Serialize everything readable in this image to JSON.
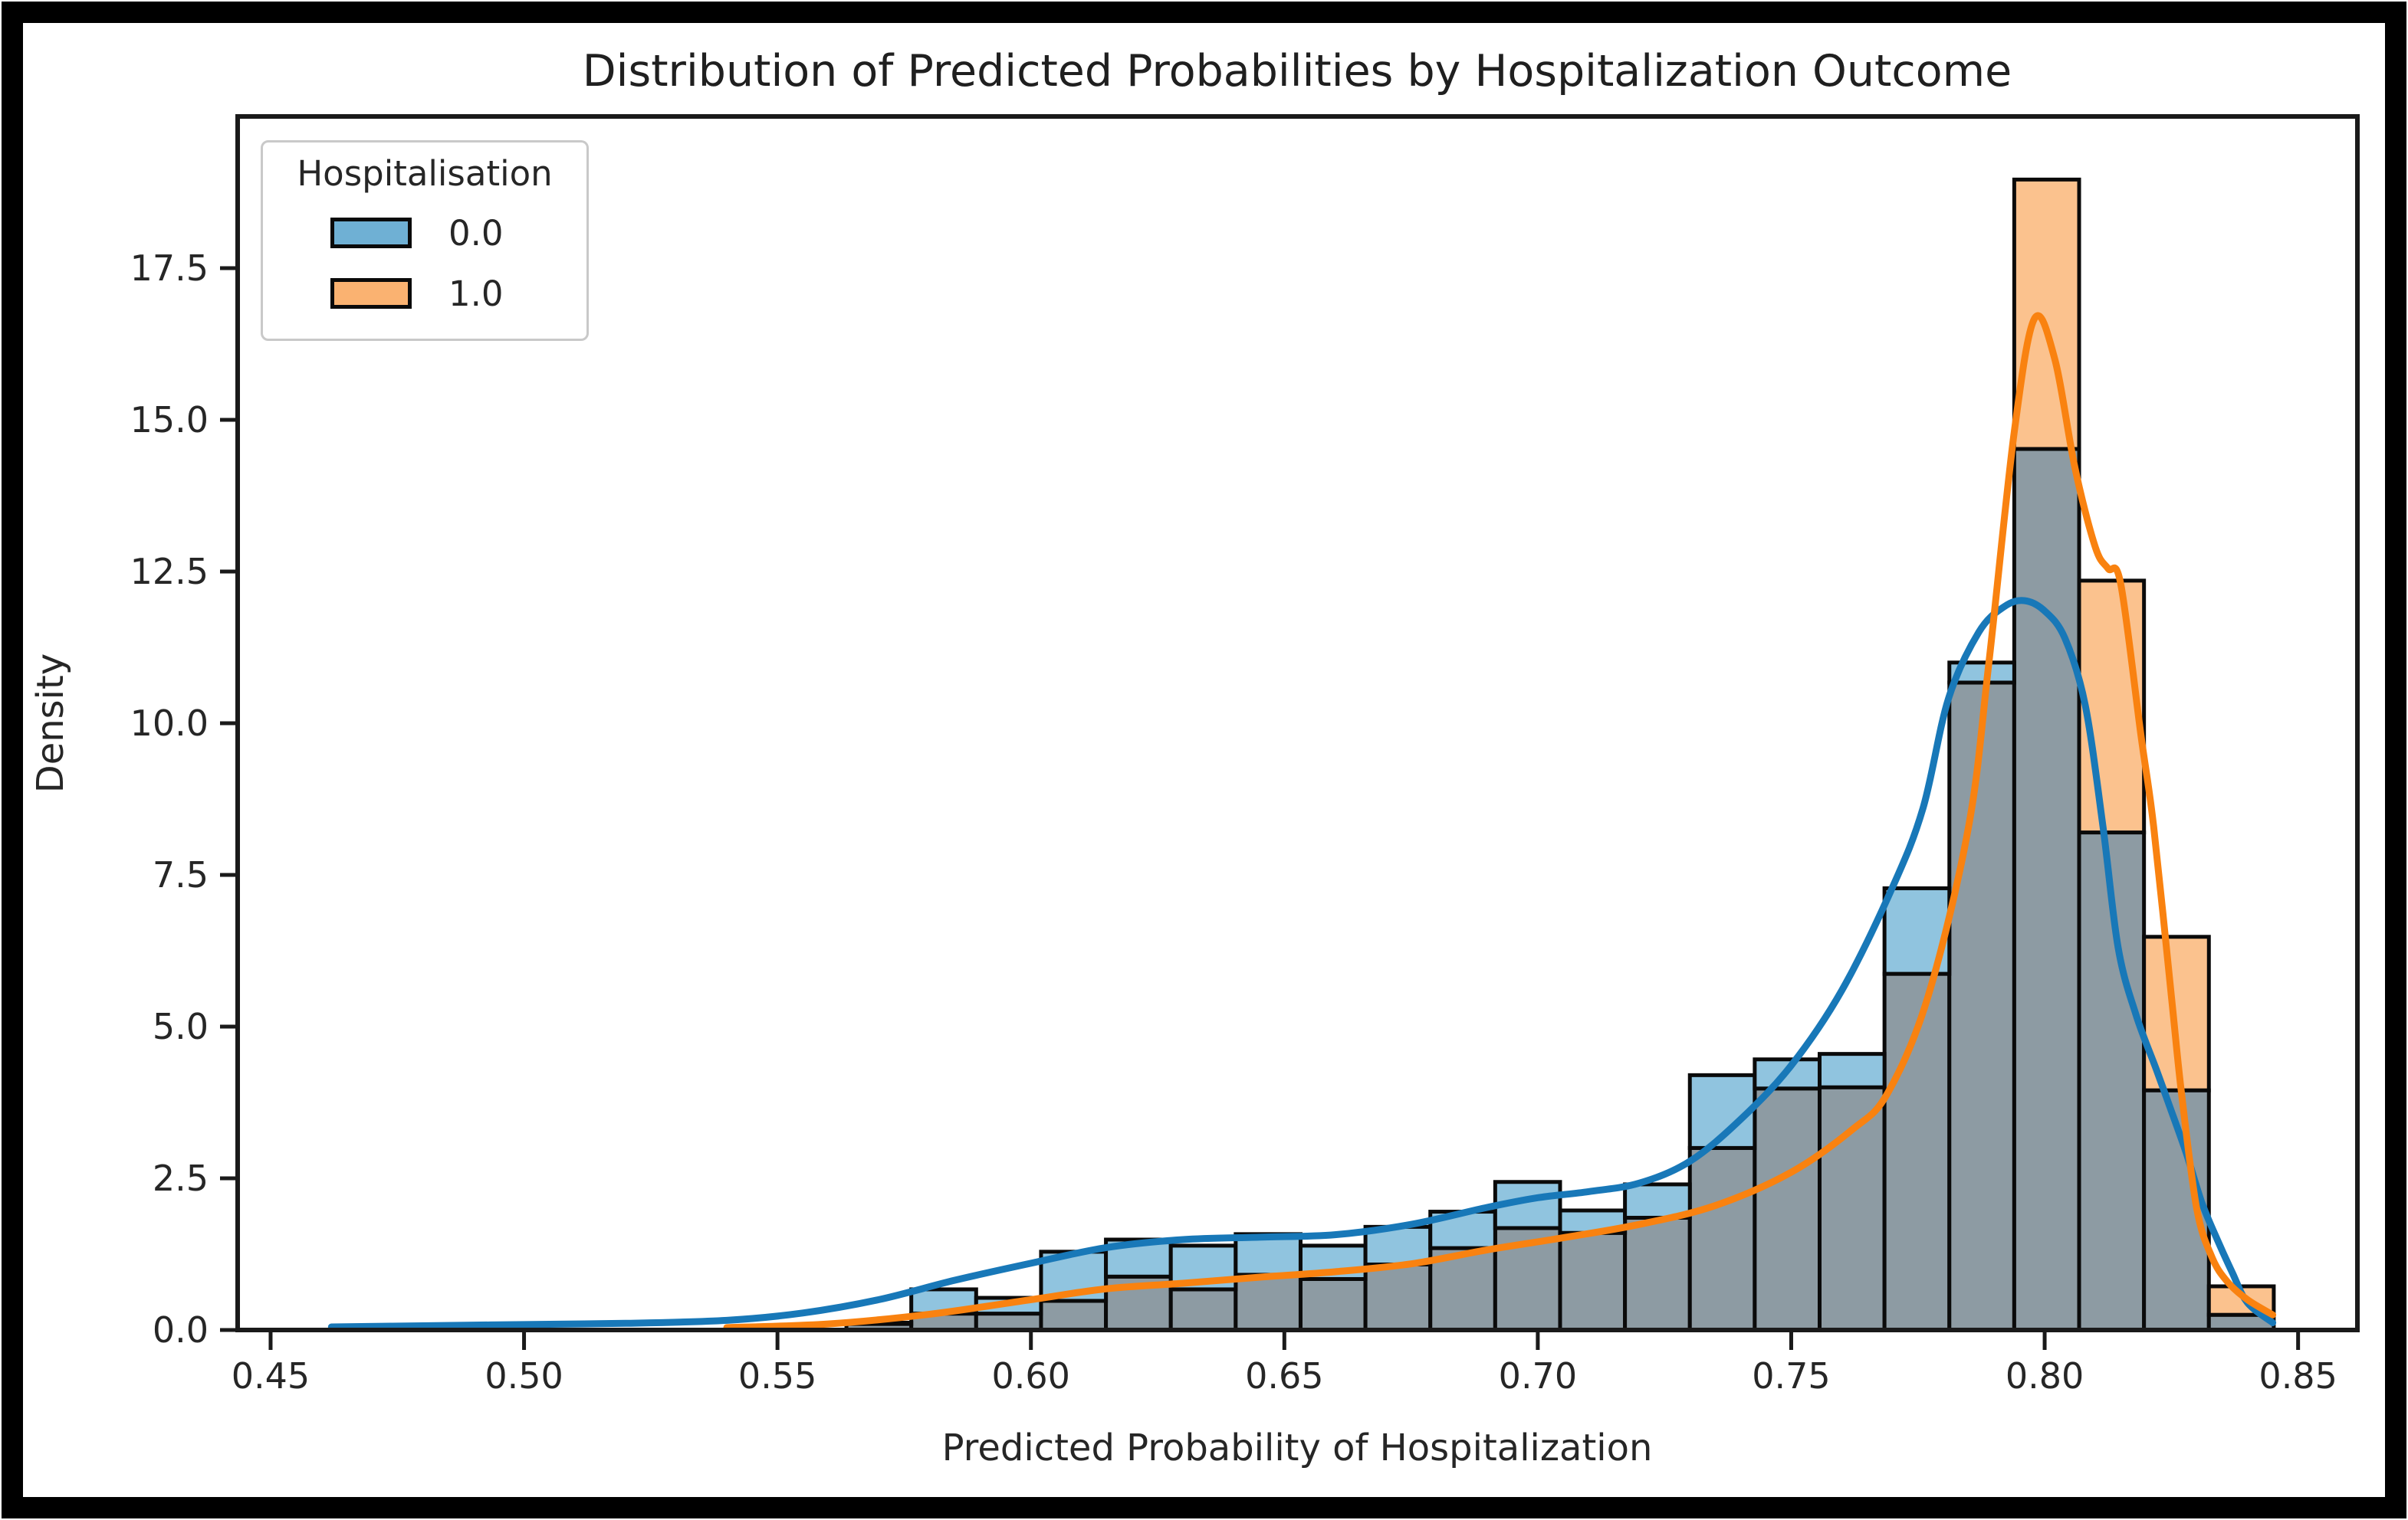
{
  "chart_data": {
    "type": "bar",
    "subtype": "histogram_with_kde_overlay",
    "title": "Distribution of Predicted Probabilities by Hospitalization Outcome",
    "xlabel": "Predicted Probability of Hospitalization",
    "ylabel": "Density",
    "grid": "off",
    "xlim": [
      0.4435,
      0.8617
    ],
    "ylim": [
      0,
      20
    ],
    "x_tick_labels": [
      "0.45",
      "0.50",
      "0.55",
      "0.60",
      "0.65",
      "0.70",
      "0.75",
      "0.80",
      "0.85"
    ],
    "x_tick_values": [
      0.45,
      0.5,
      0.55,
      0.6,
      0.65,
      0.7,
      0.75,
      0.8,
      0.85
    ],
    "y_tick_labels": [
      "0.0",
      "2.5",
      "5.0",
      "7.5",
      "10.0",
      "12.5",
      "15.0",
      "17.5"
    ],
    "y_tick_values": [
      0.0,
      2.5,
      5.0,
      7.5,
      10.0,
      12.5,
      15.0,
      17.5
    ],
    "legend": {
      "title": "Hospitalisation",
      "position": "upper left",
      "entries": [
        {
          "label": "0.0",
          "color": "#6FB0D4"
        },
        {
          "label": "1.0",
          "color": "#FAB271"
        }
      ]
    },
    "bin_edges": [
      0.5636,
      0.5764,
      0.5892,
      0.602,
      0.6148,
      0.6276,
      0.6404,
      0.6532,
      0.666,
      0.6788,
      0.6916,
      0.7044,
      0.7172,
      0.73,
      0.7428,
      0.7556,
      0.7684,
      0.7812,
      0.794,
      0.8068,
      0.8196,
      0.8324,
      0.8452
    ],
    "series": [
      {
        "name": "0.0",
        "values": [
          0.12,
          0.67,
          0.53,
          1.29,
          1.49,
          1.39,
          1.58,
          1.39,
          1.7,
          1.95,
          2.44,
          1.97,
          2.4,
          4.2,
          4.46,
          4.55,
          7.28,
          11.0,
          14.52,
          8.2,
          3.95,
          0.25
        ]
      },
      {
        "name": "1.0",
        "values": [
          0.1,
          0.27,
          0.27,
          0.48,
          0.88,
          0.67,
          0.91,
          0.84,
          1.08,
          1.35,
          1.68,
          1.6,
          1.85,
          3.0,
          3.98,
          4.0,
          5.87,
          10.67,
          18.96,
          12.35,
          6.48,
          0.72
        ]
      }
    ],
    "kde": [
      {
        "name": "0.0",
        "x": [
          0.462,
          0.48,
          0.5,
          0.52,
          0.54,
          0.555,
          0.57,
          0.585,
          0.6,
          0.615,
          0.63,
          0.645,
          0.66,
          0.675,
          0.69,
          0.7,
          0.71,
          0.72,
          0.73,
          0.74,
          0.75,
          0.76,
          0.77,
          0.776,
          0.781,
          0.787,
          0.792,
          0.796,
          0.8,
          0.804,
          0.808,
          0.8115,
          0.8145,
          0.818,
          0.822,
          0.8246,
          0.828,
          0.831,
          0.834,
          0.837,
          0.84,
          0.845
        ],
        "y": [
          0.05,
          0.07,
          0.09,
          0.11,
          0.16,
          0.28,
          0.5,
          0.82,
          1.1,
          1.36,
          1.49,
          1.53,
          1.57,
          1.74,
          2.02,
          2.18,
          2.28,
          2.42,
          2.78,
          3.47,
          4.36,
          5.6,
          7.3,
          8.6,
          10.4,
          11.5,
          11.92,
          12.02,
          11.85,
          11.4,
          10.3,
          8.3,
          6.3,
          5.2,
          4.3,
          3.7,
          2.9,
          2.1,
          1.5,
          0.95,
          0.45,
          0.12
        ]
      },
      {
        "name": "1.0",
        "x": [
          0.54,
          0.56,
          0.58,
          0.6,
          0.615,
          0.63,
          0.645,
          0.66,
          0.675,
          0.69,
          0.705,
          0.72,
          0.735,
          0.75,
          0.762,
          0.769,
          0.777,
          0.785,
          0.789,
          0.794,
          0.798,
          0.802,
          0.806,
          0.81,
          0.8125,
          0.815,
          0.819,
          0.8215,
          0.825,
          0.827,
          0.83,
          0.833,
          0.836,
          0.84,
          0.845
        ],
        "y": [
          0.04,
          0.1,
          0.26,
          0.5,
          0.68,
          0.77,
          0.87,
          0.96,
          1.09,
          1.32,
          1.52,
          1.74,
          2.05,
          2.6,
          3.3,
          3.9,
          5.5,
          8.3,
          11.0,
          14.8,
          16.67,
          16.0,
          14.2,
          12.9,
          12.55,
          12.3,
          9.8,
          8.3,
          5.5,
          3.9,
          2.0,
          1.2,
          0.8,
          0.5,
          0.25
        ]
      }
    ],
    "colors": {
      "bar_blue_only": "#90C4DF",
      "bar_orange_only": "#FBC28E",
      "bar_overlap": "#8D9BA3",
      "bar_edge": "#0a0a0a",
      "kde_blue": "#1878B8",
      "kde_orange": "#F98210",
      "spine": "#1a1a1a",
      "tick_text": "#262626",
      "figure_border": "#000000"
    }
  }
}
